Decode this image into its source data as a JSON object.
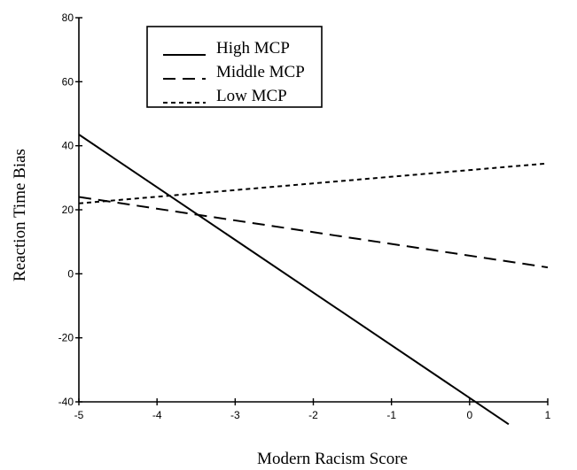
{
  "chart_data": {
    "type": "line",
    "xlabel": "Modern Racism Score",
    "ylabel": "Reaction Time Bias",
    "xlim": [
      -5,
      1
    ],
    "ylim": [
      -40,
      80
    ],
    "x_ticks": [
      "-5",
      "-4",
      "-3",
      "-2",
      "-1",
      "0",
      "1"
    ],
    "y_ticks": [
      "80",
      "60",
      "40",
      "20",
      "0",
      "-20",
      "-40"
    ],
    "grid": false,
    "legend_position": "top-left",
    "series": [
      {
        "name": "High MCP",
        "style": "solid",
        "color": "#000000",
        "x": [
          -5,
          0.5
        ],
        "y": [
          43.5,
          -47
        ]
      },
      {
        "name": "Middle MCP",
        "style": "long-dash",
        "color": "#000000",
        "x": [
          -5,
          1
        ],
        "y": [
          24,
          2
        ]
      },
      {
        "name": "Low MCP",
        "style": "short-dash",
        "color": "#000000",
        "x": [
          -5,
          1
        ],
        "y": [
          22,
          34.5
        ]
      }
    ]
  }
}
